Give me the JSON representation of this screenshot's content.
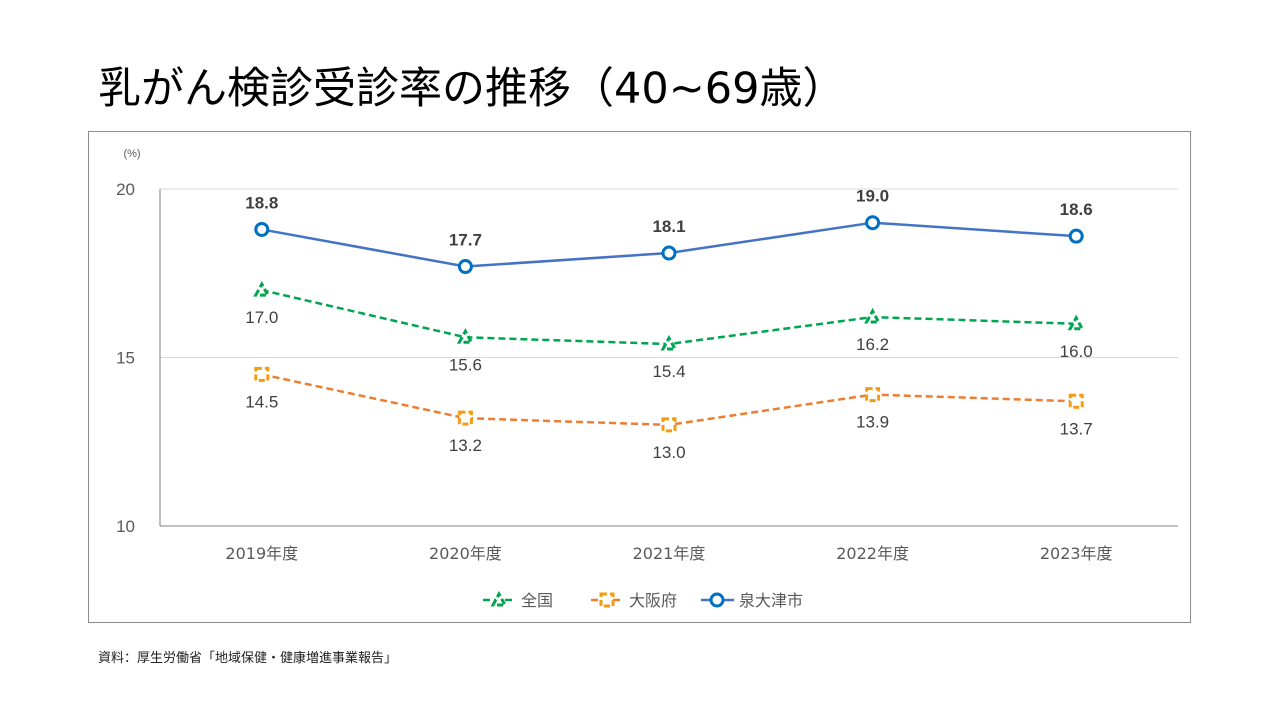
{
  "title": "乳がん検診受診率の推移（40~69歳）",
  "source": "資料：厚生労働省「地域保健・健康増進事業報告」",
  "chart_data": {
    "type": "line",
    "title": "乳がん検診受診率の推移（40~69歳）",
    "unit_label": "(%)",
    "xlabel": "",
    "ylabel": "(%)",
    "ylim": [
      10,
      20
    ],
    "yticks": [
      10,
      15,
      20
    ],
    "ytick_labels": [
      "10",
      "15",
      "20"
    ],
    "grid": true,
    "legend_position": "bottom",
    "categories": [
      "2019年度",
      "2020年度",
      "2021年度",
      "2022年度",
      "2023年度"
    ],
    "series": [
      {
        "name": "全国",
        "values": [
          17.0,
          15.6,
          15.4,
          16.2,
          16.0
        ],
        "labels": [
          "17.0",
          "15.6",
          "15.4",
          "16.2",
          "16.0"
        ],
        "color": "#00a550",
        "line_style": "dashed",
        "marker": "triangle",
        "marker_color": "#00a550",
        "label_position": "below",
        "label_bold": false
      },
      {
        "name": "大阪府",
        "values": [
          14.5,
          13.2,
          13.0,
          13.9,
          13.7
        ],
        "labels": [
          "14.5",
          "13.2",
          "13.0",
          "13.9",
          "13.7"
        ],
        "color": "#ed7d31",
        "line_style": "dashed",
        "marker": "square",
        "marker_color": "#f39c12",
        "label_position": "below",
        "label_bold": false
      },
      {
        "name": "泉大津市",
        "values": [
          18.8,
          17.7,
          18.1,
          19.0,
          18.6
        ],
        "labels": [
          "18.8",
          "17.7",
          "18.1",
          "19.0",
          "18.6"
        ],
        "color": "#4472c4",
        "line_style": "solid",
        "marker": "circle",
        "marker_color": "#0070c0",
        "label_position": "above",
        "label_bold": true
      }
    ]
  }
}
